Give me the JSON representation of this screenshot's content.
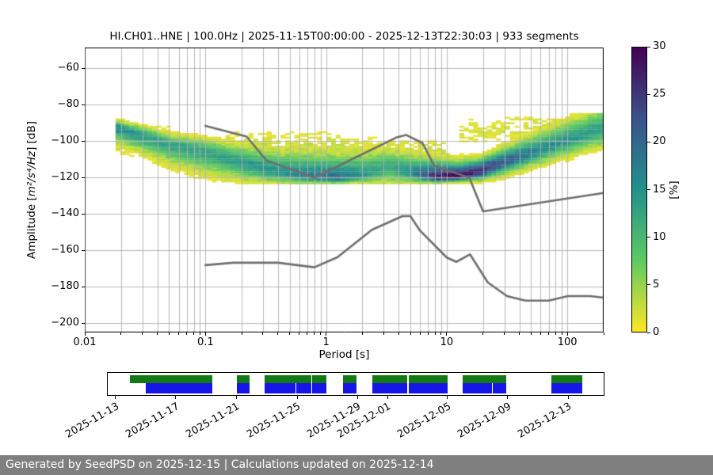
{
  "header": {
    "title": "HI.CH01..HNE | 100.0Hz | 2025-11-15T00:00:00 - 2025-12-13T22:30:03 | 933 segments"
  },
  "footer": {
    "text": "Generated by SeedPSD on 2025-12-15 | Calculations updated on 2025-12-14",
    "bg": "#7f7f7f"
  },
  "chart_data": {
    "type": "heatmap",
    "title": "HI.CH01..HNE | 100.0Hz | 2025-11-15T00:00:00 - 2025-12-13T22:30:03 | 933 segments",
    "xlabel": "Period [s]",
    "ylabel": "Amplitude [m²/s⁴/Hz] [dB]",
    "ylabel_prefix": "Amplitude [",
    "ylabel_math": "m²/s⁴/Hz",
    "ylabel_suffix": "] [dB]",
    "xscale": "log",
    "xlim": [
      0.01,
      200
    ],
    "ylim": [
      -205,
      -48.5
    ],
    "x_ticks": [
      "0.01",
      "0.1",
      "1",
      "10",
      "100"
    ],
    "x_tick_values": [
      0.01,
      0.1,
      1,
      10,
      100
    ],
    "y_ticks": [
      -60,
      -80,
      -100,
      -120,
      -140,
      -160,
      -180,
      -200
    ],
    "grid": true,
    "grid_color": "#b0b0b0",
    "colorbar": {
      "label": "[%]",
      "min": 0,
      "max": 30,
      "ticks": [
        0,
        5,
        10,
        15,
        20,
        25,
        30
      ],
      "colormap": "viridis_r",
      "stops": [
        "#fde725",
        "#5ec962",
        "#21918c",
        "#3b528b",
        "#440154"
      ]
    },
    "psd_ridge_comment": "probability ridge of the PPSD histogram: period[s], center dB, peak %, sigma above, sigma below",
    "psd_ridge": [
      {
        "p": 0.018,
        "c": -92.5,
        "pk": 16,
        "su": 2.2,
        "sl": 4.5
      },
      {
        "p": 0.03,
        "c": -97.0,
        "pk": 14,
        "su": 2.8,
        "sl": 5.5
      },
      {
        "p": 0.05,
        "c": -102.0,
        "pk": 13,
        "su": 3.2,
        "sl": 6.0
      },
      {
        "p": 0.08,
        "c": -104.5,
        "pk": 13,
        "su": 3.6,
        "sl": 6.5
      },
      {
        "p": 0.13,
        "c": -108.5,
        "pk": 13,
        "su": 4.5,
        "sl": 6.0
      },
      {
        "p": 0.22,
        "c": -113.0,
        "pk": 14,
        "su": 5.5,
        "sl": 5.0
      },
      {
        "p": 0.4,
        "c": -117.0,
        "pk": 15,
        "su": 6.5,
        "sl": 3.5
      },
      {
        "p": 0.7,
        "c": -119.5,
        "pk": 17,
        "su": 7.5,
        "sl": 2.2
      },
      {
        "p": 1.2,
        "c": -120.5,
        "pk": 19,
        "su": 7.5,
        "sl": 1.6
      },
      {
        "p": 2.0,
        "c": -118.5,
        "pk": 14,
        "su": 7.0,
        "sl": 2.5
      },
      {
        "p": 3.2,
        "c": -113.5,
        "pk": 12,
        "su": 5.0,
        "sl": 5.5
      },
      {
        "p": 5.0,
        "c": -117.5,
        "pk": 16,
        "su": 5.5,
        "sl": 3.0
      },
      {
        "p": 8.0,
        "c": -120.0,
        "pk": 27,
        "su": 5.5,
        "sl": 1.6
      },
      {
        "p": 12,
        "c": -119.5,
        "pk": 30,
        "su": 4.5,
        "sl": 1.5
      },
      {
        "p": 18,
        "c": -116.5,
        "pk": 26,
        "su": 4.0,
        "sl": 2.8
      },
      {
        "p": 30,
        "c": -111.0,
        "pk": 21,
        "su": 4.5,
        "sl": 3.8
      },
      {
        "p": 50,
        "c": -106.0,
        "pk": 17,
        "su": 5.0,
        "sl": 4.2
      },
      {
        "p": 80,
        "c": -101.0,
        "pk": 15,
        "su": 5.5,
        "sl": 4.6
      },
      {
        "p": 130,
        "c": -96.5,
        "pk": 14,
        "su": 6.0,
        "sl": 5.0
      },
      {
        "p": 200,
        "c": -92.5,
        "pk": 13,
        "su": 6.5,
        "sl": 5.5
      }
    ],
    "halos": [
      {
        "p0": 0.018,
        "p1": 0.05,
        "c": -100,
        "pk": 3.0,
        "s": 5.0
      },
      {
        "p0": 0.05,
        "p1": 1.5,
        "c": -105,
        "pk": 3.0,
        "s": 6.0
      },
      {
        "p0": 1.5,
        "p1": 9,
        "c": -106,
        "pk": 2.5,
        "s": 5.0
      },
      {
        "p0": 12,
        "p1": 200,
        "c": -94,
        "pk": 2.0,
        "s": 4.5
      },
      {
        "p0": 30,
        "p1": 160,
        "c": -90,
        "pk": 2.2,
        "s": 2.5
      }
    ],
    "db_floor": -123,
    "db_ceiling": -85,
    "noise_models": {
      "color": "#6e6e6e",
      "nhnm": [
        [
          0.1,
          -91.5
        ],
        [
          0.22,
          -97.4
        ],
        [
          0.32,
          -110.5
        ],
        [
          0.8,
          -120.0
        ],
        [
          3.8,
          -98.0
        ],
        [
          4.6,
          -96.5
        ],
        [
          6.3,
          -101.0
        ],
        [
          7.9,
          -113.5
        ],
        [
          15.4,
          -120.0
        ],
        [
          20.0,
          -138.5
        ],
        [
          200.0,
          -128.4
        ]
      ],
      "nlnm": [
        [
          0.1,
          -168.0
        ],
        [
          0.17,
          -166.7
        ],
        [
          0.4,
          -166.7
        ],
        [
          0.8,
          -169.2
        ],
        [
          1.24,
          -163.7
        ],
        [
          2.4,
          -148.6
        ],
        [
          4.3,
          -141.1
        ],
        [
          5.0,
          -141.1
        ],
        [
          6.0,
          -149.0
        ],
        [
          10.0,
          -163.8
        ],
        [
          12.0,
          -166.2
        ],
        [
          15.6,
          -162.1
        ],
        [
          21.9,
          -177.5
        ],
        [
          31.6,
          -185.0
        ],
        [
          45.0,
          -187.5
        ],
        [
          70.0,
          -187.5
        ],
        [
          101.0,
          -185.0
        ],
        [
          154.0,
          -185.0
        ],
        [
          200.0,
          -185.9
        ]
      ]
    },
    "availability": {
      "green_color": "#147814",
      "blue_color": "#1616e8",
      "date_ticks": [
        {
          "label": "2025-11-13",
          "pos": 0.0175
        },
        {
          "label": "2025-11-17",
          "pos": 0.1385
        },
        {
          "label": "2025-11-21",
          "pos": 0.2596
        },
        {
          "label": "2025-11-25",
          "pos": 0.3822
        },
        {
          "label": "2025-11-29",
          "pos": 0.5032
        },
        {
          "label": "2025-12-01",
          "pos": 0.5637
        },
        {
          "label": "2025-12-05",
          "pos": 0.6847
        },
        {
          "label": "2025-12-09",
          "pos": 0.8057
        },
        {
          "label": "2025-12-13",
          "pos": 0.9268
        }
      ],
      "green_segments": [
        [
          0.0446,
          0.2102
        ],
        [
          0.2596,
          0.2866
        ],
        [
          0.3169,
          0.4108
        ],
        [
          0.4124,
          0.4411
        ],
        [
          0.4745,
          0.5016
        ],
        [
          0.5334,
          0.6035
        ],
        [
          0.6067,
          0.6847
        ],
        [
          0.715,
          0.8041
        ],
        [
          0.8949,
          0.957
        ]
      ],
      "blue_segments": [
        [
          0.0764,
          0.2102
        ],
        [
          0.2596,
          0.2866
        ],
        [
          0.3169,
          0.379
        ],
        [
          0.3806,
          0.4108
        ],
        [
          0.4124,
          0.4411
        ],
        [
          0.4745,
          0.5016
        ],
        [
          0.5334,
          0.6035
        ],
        [
          0.6067,
          0.6847
        ],
        [
          0.715,
          0.7755
        ],
        [
          0.7771,
          0.8041
        ],
        [
          0.8949,
          0.957
        ]
      ]
    }
  }
}
